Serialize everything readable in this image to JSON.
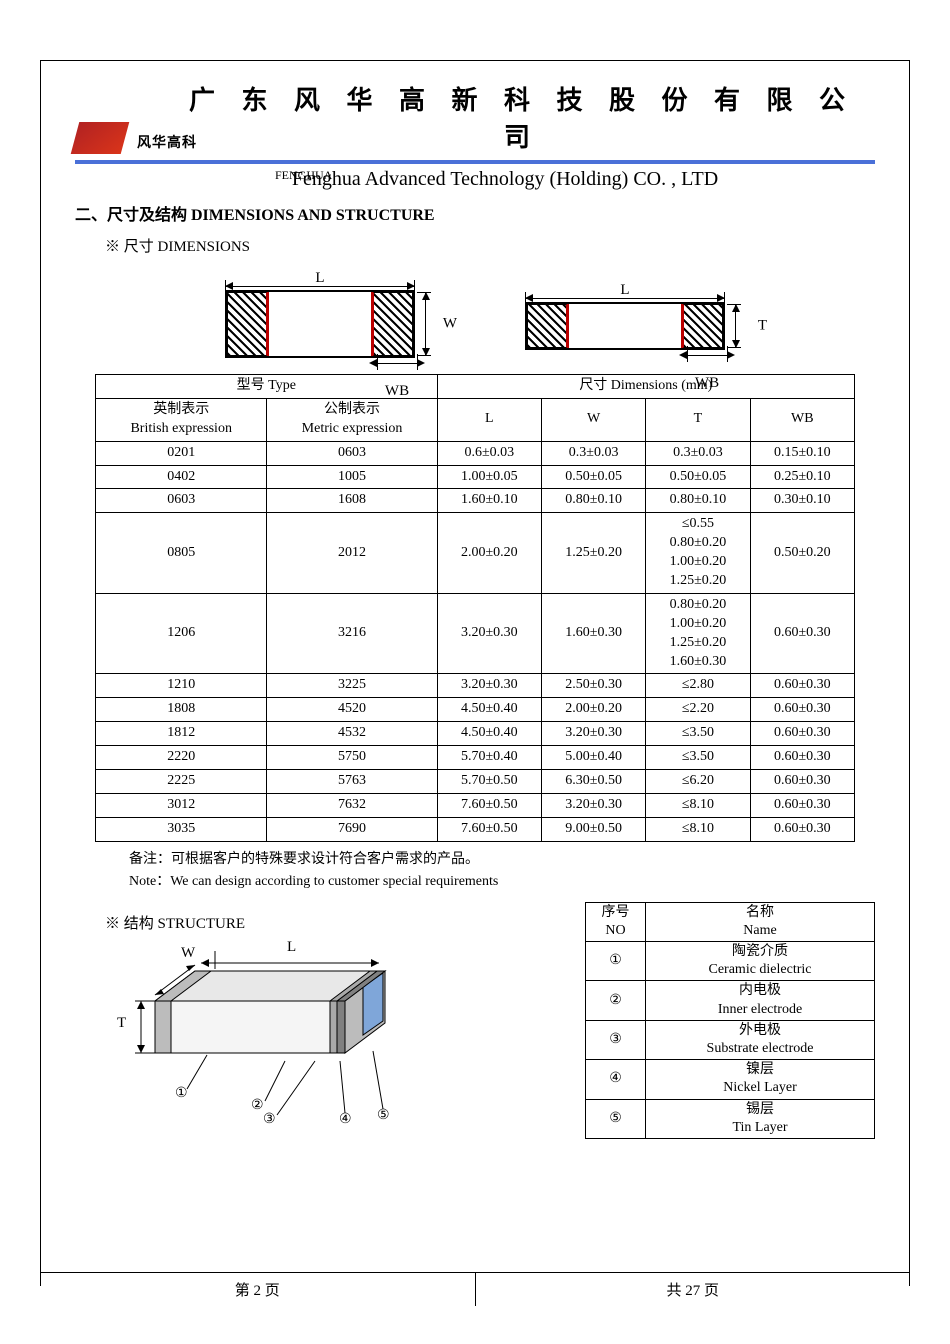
{
  "header": {
    "logo_text": "风华高科",
    "title_cn": "广 东 风 华 高 新 科 技 股 份 有 限 公 司",
    "fenghua_label": "FENGHUA",
    "title_en": "Fenghua Advanced Technology (Holding) CO. , LTD",
    "colors": {
      "blue_bar": "#4a70d8",
      "logo_red": "#c8301a"
    }
  },
  "section": {
    "title": "二、尺寸及结构    DIMENSIONS AND STRUCTURE",
    "dimensions_label": "※ 尺寸 DIMENSIONS",
    "structure_label": "※ 结构 STRUCTURE"
  },
  "diagram": {
    "L": "L",
    "W": "W",
    "T": "T",
    "WB": "WB"
  },
  "dim_table": {
    "header_type": "型号 Type",
    "header_dim": "尺寸      Dimensions      (mm)",
    "col_british_cn": "英制表示",
    "col_british_en": "British expression",
    "col_metric_cn": "公制表示",
    "col_metric_en": "Metric expression",
    "col_L": "L",
    "col_W": "W",
    "col_T": "T",
    "col_WB": "WB",
    "rows": [
      {
        "b": "0201",
        "m": "0603",
        "L": "0.6±0.03",
        "W": "0.3±0.03",
        "T": "0.3±0.03",
        "WB": "0.15±0.10"
      },
      {
        "b": "0402",
        "m": "1005",
        "L": "1.00±0.05",
        "W": "0.50±0.05",
        "T": "0.50±0.05",
        "WB": "0.25±0.10"
      },
      {
        "b": "0603",
        "m": "1608",
        "L": "1.60±0.10",
        "W": "0.80±0.10",
        "T": "0.80±0.10",
        "WB": "0.30±0.10"
      },
      {
        "b": "0805",
        "m": "2012",
        "L": "2.00±0.20",
        "W": "1.25±0.20",
        "T": "≤0.55\n0.80±0.20\n1.00±0.20\n1.25±0.20",
        "WB": "0.50±0.20"
      },
      {
        "b": "1206",
        "m": "3216",
        "L": "3.20±0.30",
        "W": "1.60±0.30",
        "T": "0.80±0.20\n1.00±0.20\n1.25±0.20\n1.60±0.30",
        "WB": "0.60±0.30"
      },
      {
        "b": "1210",
        "m": "3225",
        "L": "3.20±0.30",
        "W": "2.50±0.30",
        "T": "≤2.80",
        "WB": "0.60±0.30"
      },
      {
        "b": "1808",
        "m": "4520",
        "L": "4.50±0.40",
        "W": "2.00±0.20",
        "T": "≤2.20",
        "WB": "0.60±0.30"
      },
      {
        "b": "1812",
        "m": "4532",
        "L": "4.50±0.40",
        "W": "3.20±0.30",
        "T": "≤3.50",
        "WB": "0.60±0.30"
      },
      {
        "b": "2220",
        "m": "5750",
        "L": "5.70±0.40",
        "W": "5.00±0.40",
        "T": "≤3.50",
        "WB": "0.60±0.30"
      },
      {
        "b": "2225",
        "m": "5763",
        "L": "5.70±0.50",
        "W": "6.30±0.50",
        "T": "≤6.20",
        "WB": "0.60±0.30"
      },
      {
        "b": "3012",
        "m": "7632",
        "L": "7.60±0.50",
        "W": "3.20±0.30",
        "T": "≤8.10",
        "WB": "0.60±0.30"
      },
      {
        "b": "3035",
        "m": "7690",
        "L": "7.60±0.50",
        "W": "9.00±0.50",
        "T": "≤8.10",
        "WB": "0.60±0.30"
      }
    ]
  },
  "notes": {
    "cn": "备注：可根据客户的特殊要求设计符合客户需求的产品。",
    "en": "Note：We can design according to customer special requirements"
  },
  "struct_table": {
    "col_no_cn": "序号",
    "col_no_en": "NO",
    "col_name_cn": "名称",
    "col_name_en": "Name",
    "rows": [
      {
        "no": "①",
        "cn": "陶瓷介质",
        "en": "Ceramic   dielectric"
      },
      {
        "no": "②",
        "cn": "内电极",
        "en": "Inner   electrode"
      },
      {
        "no": "③",
        "cn": "外电极",
        "en": "Substrate   electrode"
      },
      {
        "no": "④",
        "cn": "镍层",
        "en": "Nickel Layer"
      },
      {
        "no": "⑤",
        "cn": "锡层",
        "en": "Tin Layer"
      }
    ]
  },
  "struct_labels": {
    "W": "W",
    "L": "L",
    "T": "T",
    "c1": "①",
    "c2": "②",
    "c3": "③",
    "c4": "④",
    "c5": "⑤"
  },
  "footer": {
    "left": "第   2   页",
    "right": "共  27  页"
  },
  "style": {
    "table_font_size": 14,
    "title_cn_size": 26,
    "title_en_size": 20,
    "text_color": "#000000",
    "bg_color": "#ffffff",
    "border_color": "#000000",
    "red_line": "#b00000",
    "struct_blue": "#7fa6d9",
    "struct_gray": "#bcbcbc"
  }
}
